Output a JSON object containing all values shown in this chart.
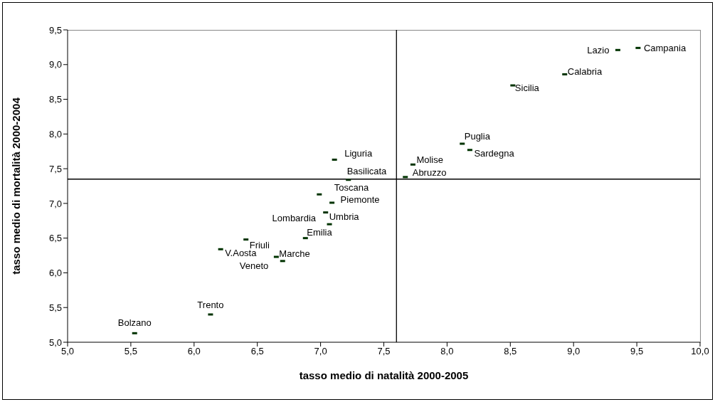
{
  "chart_data": {
    "type": "scatter",
    "xlabel": "tasso medio di natalità 2000-2005",
    "ylabel": "tasso medio di mortalità 2000-2004",
    "x": [
      9.51,
      9.35,
      8.93,
      8.52,
      8.12,
      8.18,
      7.73,
      7.67,
      7.11,
      7.22,
      6.99,
      7.09,
      7.04,
      7.07,
      6.88,
      6.41,
      6.21,
      6.65,
      6.7,
      6.13,
      5.53
    ],
    "series": [
      {
        "color": "#003300",
        "values": [
          9.24,
          9.21,
          8.86,
          8.7,
          7.86,
          7.77,
          7.56,
          7.38,
          7.63,
          7.34,
          7.13,
          7.01,
          6.87,
          6.7,
          6.5,
          6.48,
          6.34,
          6.23,
          6.17,
          5.4,
          5.13
        ]
      }
    ],
    "marker": "square",
    "xlim": [
      5,
      10
    ],
    "xticks": [
      {
        "value": 5,
        "label": "5,0"
      },
      {
        "value": 5.5,
        "label": "5,5"
      },
      {
        "value": 6,
        "label": "6,0"
      },
      {
        "value": 6.5,
        "label": "6,5"
      },
      {
        "value": 7,
        "label": "7,0"
      },
      {
        "value": 7.5,
        "label": "7,5"
      },
      {
        "value": 8,
        "label": "8,0"
      },
      {
        "value": 8.5,
        "label": "8,5"
      },
      {
        "value": 9,
        "label": "9,0"
      },
      {
        "value": 9.5,
        "label": "9,5"
      },
      {
        "value": 10,
        "label": "10,0"
      }
    ],
    "ylim": [
      5,
      9.5
    ],
    "yticks": [
      {
        "value": 5,
        "label": "5,0"
      },
      {
        "value": 5.5,
        "label": "5,5"
      },
      {
        "value": 6,
        "label": "6,0"
      },
      {
        "value": 6.5,
        "label": "6,5"
      },
      {
        "value": 7,
        "label": "7,0"
      },
      {
        "value": 7.5,
        "label": "7,5"
      },
      {
        "value": 8,
        "label": "8,0"
      },
      {
        "value": 8.5,
        "label": "8,5"
      },
      {
        "value": 9,
        "label": "9,0"
      },
      {
        "value": 9.5,
        "label": "9,5"
      }
    ],
    "ref_lines": [
      {
        "axis": "x",
        "value": 7.6,
        "color": "#000000"
      },
      {
        "axis": "y",
        "value": 7.35,
        "color": "#000000"
      }
    ],
    "annotations": [
      {
        "text": "Campania",
        "x": 9.51,
        "y": 9.24
      },
      {
        "text": "Lazio",
        "x": 9.35,
        "y": 9.21
      },
      {
        "text": "Calabria",
        "x": 8.93,
        "y": 8.86
      },
      {
        "text": "Sicilia",
        "x": 8.52,
        "y": 8.7
      },
      {
        "text": "Puglia",
        "x": 8.12,
        "y": 7.86
      },
      {
        "text": "Sardegna",
        "x": 8.18,
        "y": 7.77
      },
      {
        "text": "Molise",
        "x": 7.73,
        "y": 7.56
      },
      {
        "text": "Abruzzo",
        "x": 7.67,
        "y": 7.38
      },
      {
        "text": "Liguria",
        "x": 7.11,
        "y": 7.63
      },
      {
        "text": "Basilicata",
        "x": 7.22,
        "y": 7.34
      },
      {
        "text": "Toscana",
        "x": 6.99,
        "y": 7.13
      },
      {
        "text": "Piemonte",
        "x": 7.09,
        "y": 7.01
      },
      {
        "text": "Umbria",
        "x": 7.04,
        "y": 6.87
      },
      {
        "text": "Lombardia",
        "x": 7.07,
        "y": 6.7
      },
      {
        "text": "Emilia",
        "x": 6.88,
        "y": 6.5
      },
      {
        "text": "Friuli",
        "x": 6.41,
        "y": 6.48
      },
      {
        "text": "V.Aosta",
        "x": 6.21,
        "y": 6.34
      },
      {
        "text": "Marche",
        "x": 6.65,
        "y": 6.23
      },
      {
        "text": "Veneto",
        "x": 6.7,
        "y": 6.17
      },
      {
        "text": "Trento",
        "x": 6.13,
        "y": 5.4
      },
      {
        "text": "Bolzano",
        "x": 5.53,
        "y": 5.13
      }
    ]
  }
}
